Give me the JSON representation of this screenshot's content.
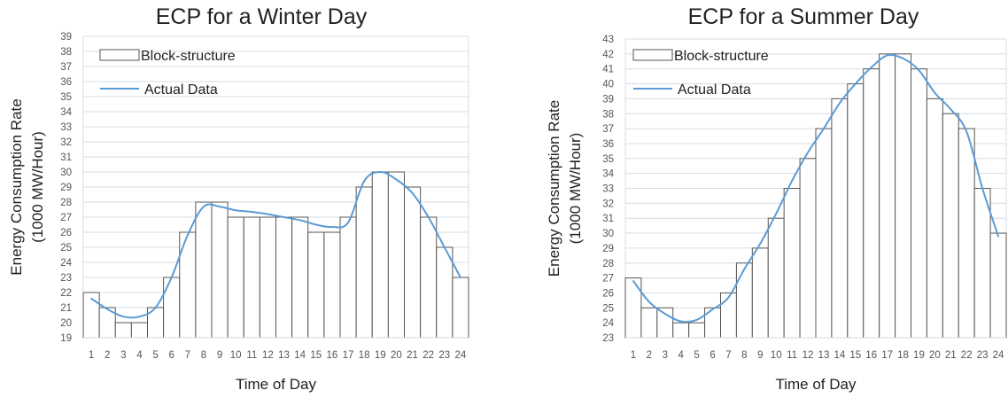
{
  "chart_data": [
    {
      "type": "bar",
      "title": "ECP for a Winter Day",
      "xlabel": "Time of Day",
      "ylabel_line1": "Energy Consumption Rate",
      "ylabel_line2": "(1000 MW/Hour)",
      "ylim": [
        19,
        39
      ],
      "grid": true,
      "legend_placement": "top-left",
      "categories": [
        "1",
        "2",
        "3",
        "4",
        "5",
        "6",
        "7",
        "8",
        "9",
        "10",
        "11",
        "12",
        "13",
        "14",
        "15",
        "16",
        "17",
        "18",
        "19",
        "20",
        "21",
        "22",
        "23",
        "24"
      ],
      "series": [
        {
          "name": "Block-structure",
          "kind": "bar",
          "color": "#555555",
          "values": [
            22,
            21,
            20,
            20,
            21,
            23,
            26,
            28,
            28,
            27,
            27,
            27,
            27,
            27,
            26,
            26,
            27,
            29,
            30,
            30,
            29,
            27,
            25,
            23
          ]
        },
        {
          "name": "Actual Data",
          "kind": "line",
          "color": "#5b9bd5",
          "values": [
            21.6,
            20.9,
            20.4,
            20.4,
            21.0,
            23.0,
            25.8,
            27.7,
            27.7,
            27.45,
            27.35,
            27.2,
            27.0,
            26.8,
            26.5,
            26.35,
            26.65,
            29.4,
            30.0,
            29.5,
            28.6,
            27.0,
            25.0,
            23.0
          ]
        }
      ]
    },
    {
      "type": "bar",
      "title": "ECP for a Summer Day",
      "xlabel": "Time of Day",
      "ylabel_line1": "Energy Consumption Rate",
      "ylabel_line2": "(1000 MW/Hour)",
      "ylim": [
        23,
        43
      ],
      "grid": true,
      "legend_placement": "top-left",
      "categories": [
        "1",
        "2",
        "3",
        "4",
        "5",
        "6",
        "7",
        "8",
        "9",
        "10",
        "11",
        "12",
        "13",
        "14",
        "15",
        "16",
        "17",
        "18",
        "19",
        "20",
        "21",
        "22",
        "23",
        "24"
      ],
      "series": [
        {
          "name": "Block-structure",
          "kind": "bar",
          "color": "#555555",
          "values": [
            27,
            25,
            25,
            24,
            24,
            25,
            26,
            28,
            29,
            31,
            33,
            35,
            37,
            39,
            40,
            41,
            42,
            42,
            41,
            39,
            38,
            37,
            33,
            30
          ]
        },
        {
          "name": "Actual Data",
          "kind": "line",
          "color": "#5b9bd5",
          "values": [
            26.8,
            25.4,
            24.6,
            24.1,
            24.2,
            24.9,
            25.7,
            27.6,
            29.3,
            31.3,
            33.5,
            35.4,
            37.0,
            38.7,
            40.0,
            41.1,
            41.9,
            41.7,
            40.9,
            39.4,
            38.3,
            36.8,
            33.0,
            29.8
          ]
        }
      ]
    }
  ]
}
